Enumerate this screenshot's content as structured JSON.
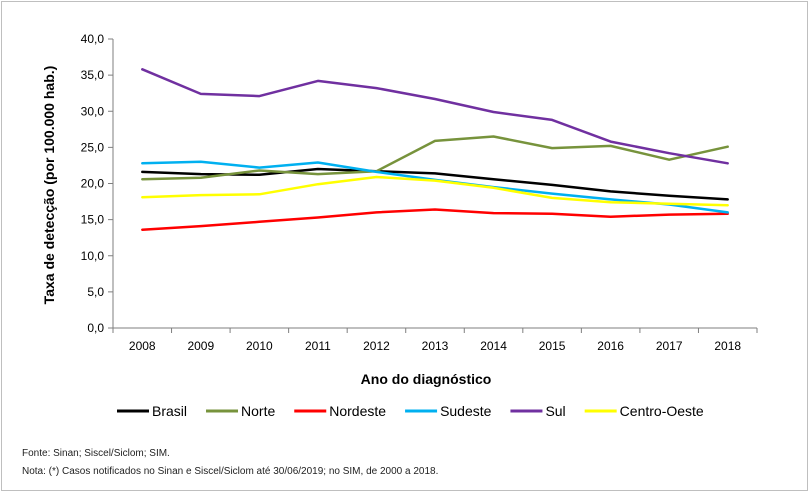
{
  "chart_data": {
    "type": "line",
    "xlabel": "Ano do diagnóstico",
    "ylabel": "Taxa de detecção (por 100.000 hab.)",
    "ylim": [
      0,
      40
    ],
    "ytick_step": 5,
    "ytick_labels": [
      "0,0",
      "5,0",
      "10,0",
      "15,0",
      "20,0",
      "25,0",
      "30,0",
      "35,0",
      "40,0"
    ],
    "categories": [
      "2008",
      "2009",
      "2010",
      "2011",
      "2012",
      "2013",
      "2014",
      "2015",
      "2016",
      "2017",
      "2018"
    ],
    "grid": false,
    "legend_position": "bottom",
    "series": [
      {
        "name": "Brasil",
        "color": "#000000",
        "values": [
          21.6,
          21.3,
          21.2,
          22.0,
          21.7,
          21.4,
          20.6,
          19.8,
          18.9,
          18.3,
          17.8
        ]
      },
      {
        "name": "Norte",
        "color": "#77933c",
        "values": [
          20.6,
          20.8,
          21.8,
          21.3,
          21.7,
          25.9,
          26.5,
          24.9,
          25.2,
          23.3,
          25.1
        ]
      },
      {
        "name": "Nordeste",
        "color": "#ff0000",
        "values": [
          13.6,
          14.1,
          14.7,
          15.3,
          16.0,
          16.4,
          15.9,
          15.8,
          15.4,
          15.7,
          15.8
        ]
      },
      {
        "name": "Sudeste",
        "color": "#00b0f0",
        "values": [
          22.8,
          23.0,
          22.2,
          22.9,
          21.6,
          20.5,
          19.5,
          18.6,
          17.8,
          17.1,
          16.0
        ]
      },
      {
        "name": "Sul",
        "color": "#7030a0",
        "values": [
          35.8,
          32.4,
          32.1,
          34.2,
          33.2,
          31.7,
          29.9,
          28.8,
          25.8,
          24.2,
          22.8
        ]
      },
      {
        "name": "Centro-Oeste",
        "color": "#ffff00",
        "values": [
          18.1,
          18.4,
          18.5,
          19.9,
          20.9,
          20.4,
          19.4,
          18.0,
          17.4,
          17.2,
          17.0
        ]
      }
    ]
  },
  "notes": {
    "fonte": "Fonte: Sinan; Siscel/Siclom; SIM.",
    "nota": "Nota: (*) Casos notificados no Sinan e Siscel/Siclom até 30/06/2019; no SIM, de 2000 a 2018."
  }
}
